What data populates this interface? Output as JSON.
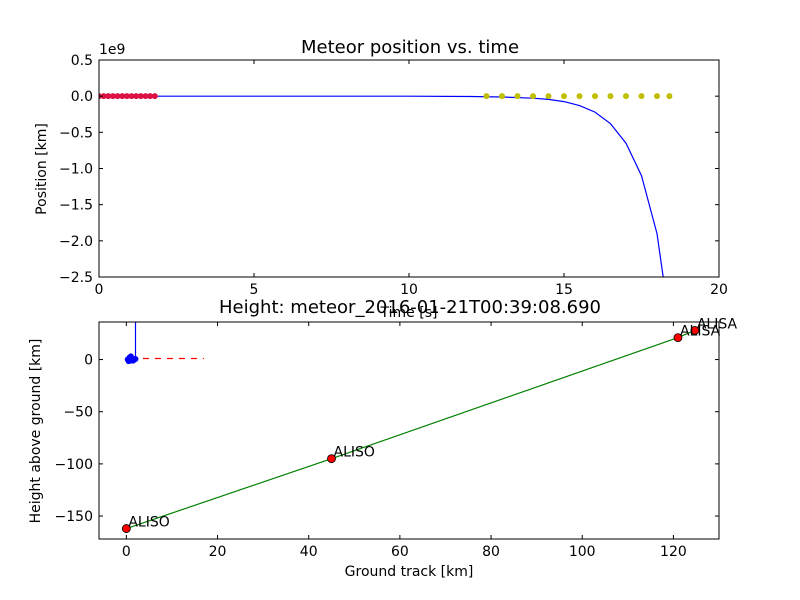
{
  "chart_data": [
    {
      "type": "line",
      "title": "Meteor position vs. time",
      "xlabel": "Time [s]",
      "ylabel": "Position [km]",
      "offset_text": "1e9",
      "xlim": [
        0,
        20
      ],
      "ylim": [
        -2.5,
        0.5
      ],
      "xticks": [
        0,
        5,
        10,
        15,
        20
      ],
      "xtick_labels": [
        "0",
        "5",
        "10",
        "15",
        "20"
      ],
      "yticks": [
        0.5,
        0.0,
        -0.5,
        -1.0,
        -1.5,
        -2.0,
        -2.5
      ],
      "ytick_labels": [
        "0.5",
        "0.0",
        "−0.5",
        "−1.0",
        "−1.5",
        "−2.0",
        "−2.5"
      ],
      "grid": false,
      "series": [
        {
          "color": "#0000ff",
          "style": "line",
          "x": [
            0,
            2,
            4,
            6,
            8,
            10,
            12,
            13,
            14,
            14.5,
            15,
            15.5,
            16,
            16.5,
            17,
            17.5,
            18,
            18.2
          ],
          "y": [
            0,
            0,
            0,
            0,
            0,
            0,
            -0.005,
            -0.012,
            -0.028,
            -0.045,
            -0.075,
            -0.13,
            -0.22,
            -0.38,
            -0.65,
            -1.1,
            -1.9,
            -2.5
          ]
        },
        {
          "color": "#dd1144",
          "style": "markers",
          "x": [
            0.0,
            0.15,
            0.3,
            0.45,
            0.6,
            0.75,
            0.9,
            1.05,
            1.2,
            1.35,
            1.5,
            1.65,
            1.8
          ],
          "y": [
            0.0,
            0.0,
            0.0,
            0.0,
            0.0,
            0.0,
            0.0,
            0.0,
            0.0,
            0.0,
            0.0,
            0.0,
            0.0
          ]
        },
        {
          "color": "#bfbf00",
          "style": "markers",
          "x": [
            12.5,
            13.0,
            13.5,
            14.0,
            14.5,
            15.0,
            15.5,
            16.0,
            16.5,
            17.0,
            17.5,
            18.0,
            18.4
          ],
          "y": [
            0.0,
            0.0,
            0.0,
            0.0,
            0.0,
            0.0,
            0.0,
            0.0,
            0.0,
            0.0,
            0.0,
            0.0,
            0.0
          ]
        }
      ]
    },
    {
      "type": "line",
      "title": "Height: meteor_2016-01-21T00:39:08.690",
      "xlabel": "Ground track [km]",
      "ylabel": "Height above ground [km]",
      "xlim": [
        -6,
        130
      ],
      "ylim": [
        -172,
        36
      ],
      "xticks": [
        0,
        20,
        40,
        60,
        80,
        100,
        120
      ],
      "xtick_labels": [
        "0",
        "20",
        "40",
        "60",
        "80",
        "100",
        "120"
      ],
      "yticks": [
        0,
        -50,
        -100,
        -150
      ],
      "ytick_labels": [
        "0",
        "−50",
        "−100",
        "−150"
      ],
      "grid": false,
      "series": [
        {
          "color": "#008000",
          "style": "line",
          "x": [
            0,
            45,
            121,
            124.7
          ],
          "y": [
            -162,
            -95,
            21,
            28
          ]
        },
        {
          "color": "#ff0000",
          "style": "dashed",
          "x": [
            1,
            17
          ],
          "y": [
            1,
            1
          ]
        },
        {
          "color": "#0000ff",
          "style": "line",
          "x": [
            2,
            2,
            1.2
          ],
          "y": [
            36,
            1,
            1
          ]
        },
        {
          "color": "#0000ff",
          "style": "markers",
          "x": [
            0.3,
            0.7,
            1.0,
            1.3,
            1.7,
            2.0,
            0.5,
            1.5,
            1.0
          ],
          "y": [
            0,
            2,
            -1,
            1,
            0,
            0.5,
            -1.5,
            -1,
            3
          ]
        }
      ],
      "points": [
        {
          "label": "ALISO",
          "x": 0,
          "y": -162,
          "color": "#ff0000"
        },
        {
          "label": "ALISO",
          "x": 45,
          "y": -95,
          "color": "#ff0000"
        },
        {
          "label": "ALISA",
          "x": 121,
          "y": 21,
          "color": "#ff0000"
        },
        {
          "label": "ALISA",
          "x": 124.7,
          "y": 28,
          "color": "#ff0000"
        }
      ]
    }
  ]
}
